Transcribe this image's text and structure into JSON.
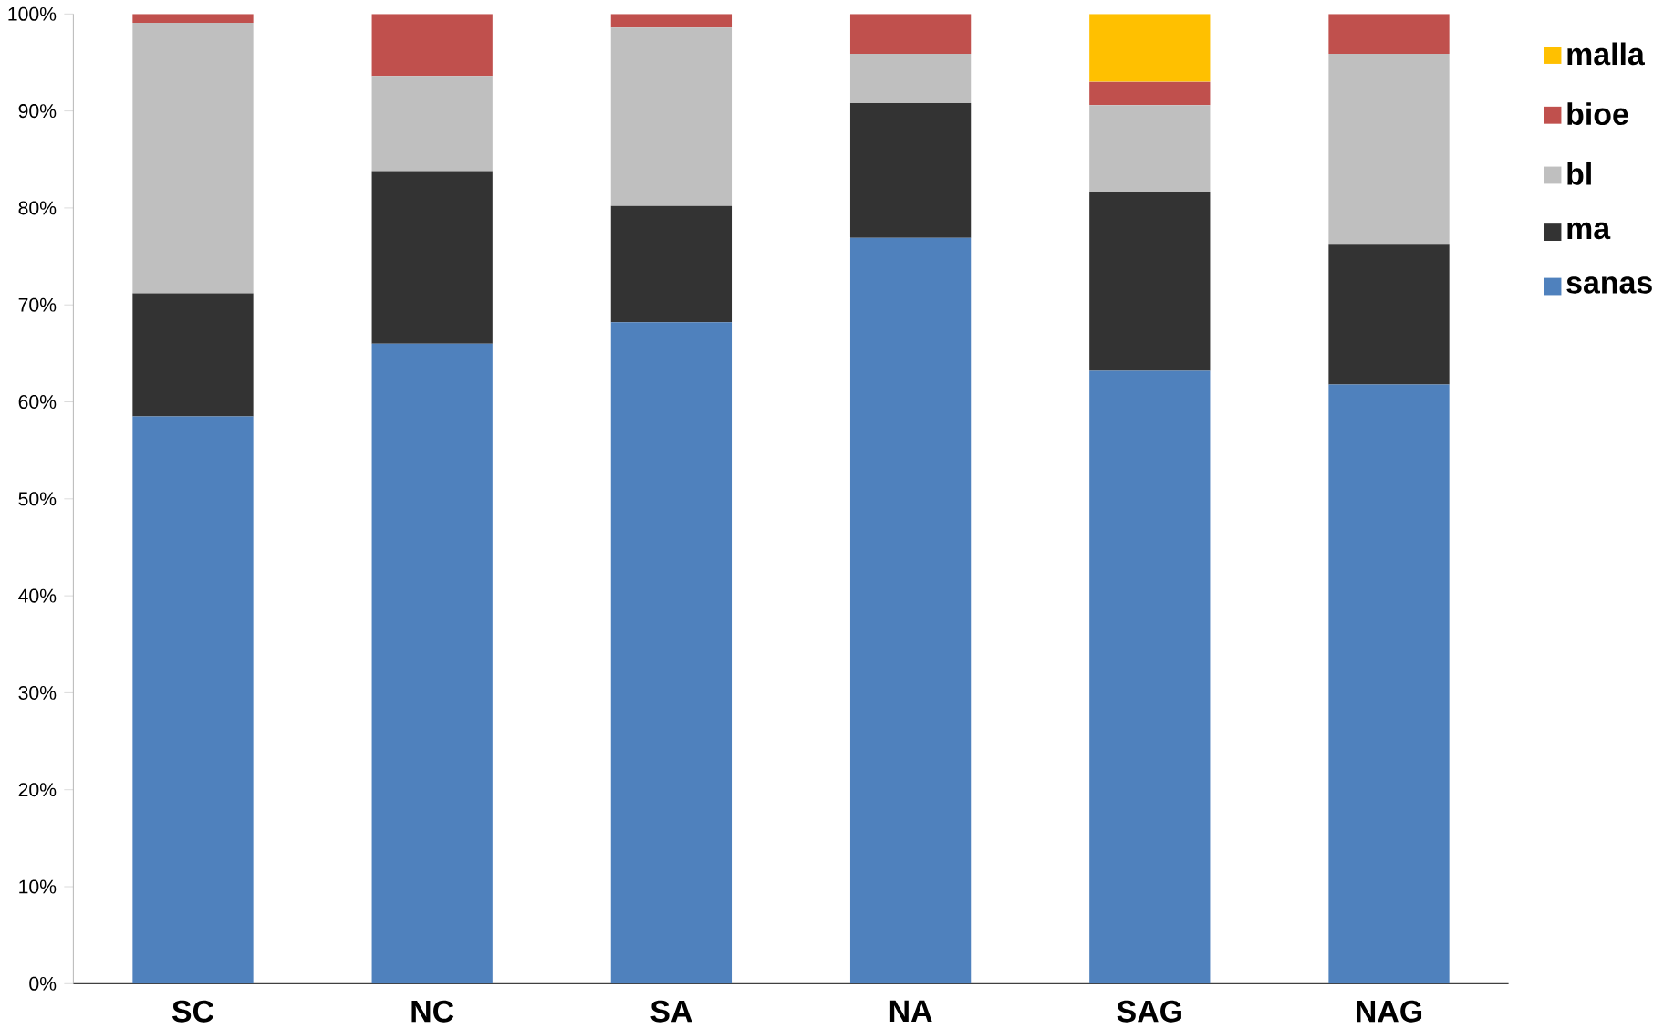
{
  "chart_data": {
    "type": "bar",
    "stacked": true,
    "categories": [
      "SC",
      "NC",
      "SA",
      "NA",
      "SAG",
      "NAG"
    ],
    "series": [
      {
        "name": "sanas",
        "color": "#4f81bd",
        "values": [
          58.5,
          66.0,
          68.2,
          76.9,
          63.2,
          61.8
        ]
      },
      {
        "name": "ma",
        "color": "#333333",
        "values": [
          12.7,
          17.8,
          12.0,
          13.9,
          18.4,
          14.4
        ]
      },
      {
        "name": "bl",
        "color": "#bfbfbf",
        "values": [
          27.9,
          9.8,
          18.4,
          5.1,
          9.0,
          19.7
        ]
      },
      {
        "name": "bioe",
        "color": "#c0504d",
        "values": [
          0.9,
          6.4,
          1.4,
          4.1,
          2.4,
          4.1
        ]
      },
      {
        "name": "malla",
        "color": "#ffc000",
        "values": [
          0,
          0,
          0,
          0,
          7.0,
          0
        ]
      }
    ],
    "ylim": [
      0,
      100
    ],
    "yticks": [
      {
        "value": 0,
        "label": "0%"
      },
      {
        "value": 10,
        "label": "10%"
      },
      {
        "value": 20,
        "label": "20%"
      },
      {
        "value": 30,
        "label": "30%"
      },
      {
        "value": 40,
        "label": "40%"
      },
      {
        "value": 50,
        "label": "50%"
      },
      {
        "value": 60,
        "label": "60%"
      },
      {
        "value": 70,
        "label": "70%"
      },
      {
        "value": 80,
        "label": "80%"
      },
      {
        "value": 90,
        "label": "90%"
      },
      {
        "value": 100,
        "label": "100%"
      }
    ],
    "grid": false,
    "legend": "right"
  }
}
